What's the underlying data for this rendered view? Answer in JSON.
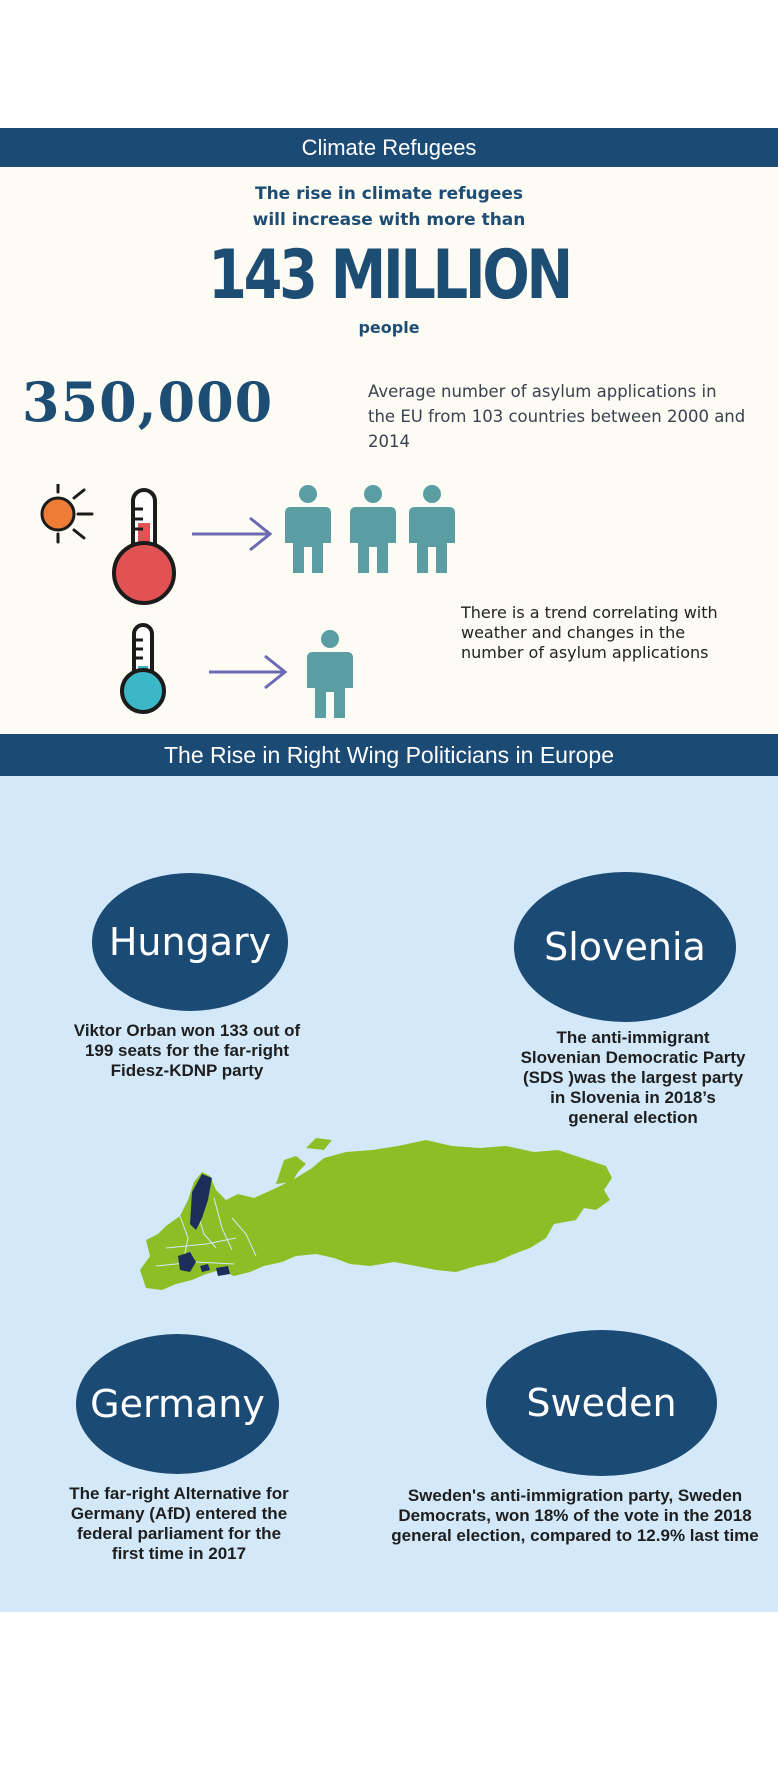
{
  "header": {
    "title": "Climate Refugees"
  },
  "refugees": {
    "intro_line1": "The rise in climate refugees",
    "intro_line2": "will increase with more than",
    "big_number": "143 MILLION",
    "big_unit": "people"
  },
  "asylum": {
    "number": "350,000",
    "description": "Average number of asylum applications in the EU from 103 countries between 2000 and 2014"
  },
  "trend": {
    "text": "There is a trend correlating with weather and changes in the number of asylum applications"
  },
  "politics": {
    "title": "The Rise in Right Wing Politicians in Europe",
    "countries": [
      {
        "name": "Hungary",
        "text": "Viktor Orban won 133 out of 199 seats for the far-right Fidesz-KDNP party"
      },
      {
        "name": "Slovenia",
        "text": "The anti-immigrant Slovenian Democratic Party (SDS )was the largest party in Slovenia in 2018’s general election"
      },
      {
        "name": "Germany",
        "text": "The far-right Alternative for Germany (AfD) entered the federal parliament for the first time in 2017"
      },
      {
        "name": "Sweden",
        "text": "Sweden's anti-immigration party, Sweden Democrats, won 18% of the vote in the 2018 general election, compared to 12.9% last time"
      }
    ]
  },
  "colors": {
    "navy": "#1b4a75",
    "cream": "#fcfbf4",
    "light_blue": "#d3e9f9",
    "teal_person": "#5a9ea3",
    "arrow": "#6b6bb5",
    "hot_red": "#e15252",
    "cold_cyan": "#3bb8c8",
    "sun_orange": "#ee7b36",
    "map_green": "#8cbf26",
    "map_highlight": "#1b2f5a"
  },
  "icons": [
    "sun-icon",
    "hot-thermometer-icon",
    "cold-thermometer-icon",
    "arrow-right-icon",
    "person-icon",
    "europe-map-icon"
  ]
}
